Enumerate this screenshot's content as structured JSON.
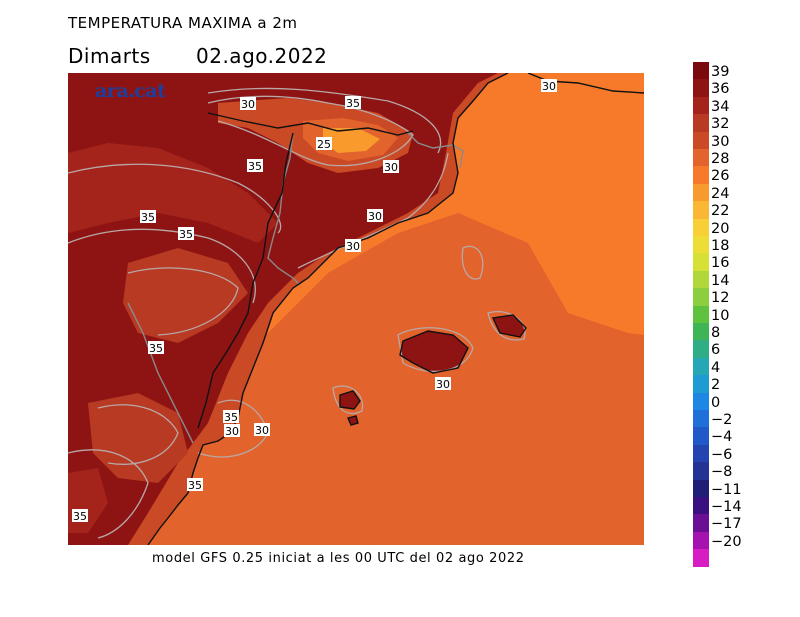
{
  "title": "TEMPERATURA MAXIMA a 2m",
  "subtitle": {
    "day": "Dimarts",
    "date": "02.ago.2022"
  },
  "logo": "ara.cat",
  "caption": "model GFS 0.25 iniciat a les 00 UTC del 02 ago 2022",
  "legend": [
    {
      "label": "39",
      "color": "#7a0a0e"
    },
    {
      "label": "36",
      "color": "#8e1414"
    },
    {
      "label": "34",
      "color": "#a4241c"
    },
    {
      "label": "32",
      "color": "#b83a22"
    },
    {
      "label": "30",
      "color": "#cb4a26"
    },
    {
      "label": "28",
      "color": "#e2632c"
    },
    {
      "label": "26",
      "color": "#f77a2a"
    },
    {
      "label": "24",
      "color": "#f99a2c"
    },
    {
      "label": "22",
      "color": "#fbb633"
    },
    {
      "label": "20",
      "color": "#f9cf38"
    },
    {
      "label": "18",
      "color": "#eedd37"
    },
    {
      "label": "16",
      "color": "#d6e037"
    },
    {
      "label": "14",
      "color": "#b2d73a"
    },
    {
      "label": "12",
      "color": "#8ccf3e"
    },
    {
      "label": "10",
      "color": "#5fc23f"
    },
    {
      "label": "8",
      "color": "#3db455"
    },
    {
      "label": "6",
      "color": "#2fae86"
    },
    {
      "label": "4",
      "color": "#26a7b6"
    },
    {
      "label": "2",
      "color": "#1f9bd4"
    },
    {
      "label": "0",
      "color": "#1e86e3"
    },
    {
      "label": "−2",
      "color": "#1f6fd9"
    },
    {
      "label": "−4",
      "color": "#215ac8"
    },
    {
      "label": "−6",
      "color": "#2445b0"
    },
    {
      "label": "−8",
      "color": "#243494"
    },
    {
      "label": "−11",
      "color": "#1f1f78"
    },
    {
      "label": "−14",
      "color": "#3a1080"
    },
    {
      "label": "−17",
      "color": "#6a0e96"
    },
    {
      "label": "−20",
      "color": "#a612b0"
    },
    {
      "label": "",
      "color": "#d61cc2"
    }
  ],
  "contour_labels": [
    "30",
    "35",
    "25",
    "30",
    "35",
    "30",
    "30",
    "35",
    "35",
    "35",
    "30",
    "30",
    "35",
    "35",
    "30",
    "35",
    "30"
  ],
  "colors": {
    "hot": "#8e1414",
    "warm": "#cb4a26",
    "sea": "#f77a2a",
    "sea_warm": "#e2632c",
    "coast": "#111111",
    "contour": "#b8a8a8"
  }
}
